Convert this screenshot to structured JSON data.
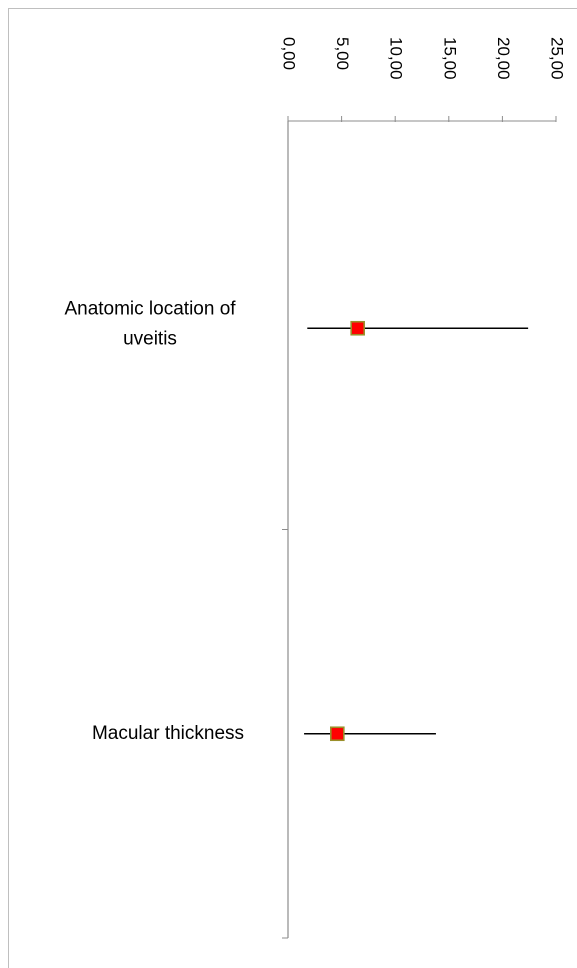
{
  "chart_data": {
    "type": "scatter",
    "orientation": "rotated",
    "title": "",
    "xlabel": "",
    "ylabel": "",
    "xlim": [
      0,
      25
    ],
    "tick_values": [
      0,
      5,
      10,
      15,
      20,
      25
    ],
    "tick_labels": [
      "0,00",
      "5,00",
      "10,00",
      "15,00",
      "20,00",
      "25,00"
    ],
    "categories": [
      {
        "label_lines": [
          "Anatomic location of",
          "uveitis"
        ]
      },
      {
        "label_lines": [
          "Macular thickness"
        ]
      }
    ],
    "series": [
      {
        "values": [
          6.5,
          4.6
        ],
        "ci_low": [
          1.8,
          1.5
        ],
        "ci_high": [
          22.4,
          13.8
        ]
      }
    ],
    "colors": {
      "marker_fill": "#ff0000",
      "marker_border": "#9a8f2a",
      "error_bar": "#000000",
      "axis": "#8c8c8c",
      "frame": "#bfbfbf"
    },
    "grid": false,
    "legend": "none"
  }
}
